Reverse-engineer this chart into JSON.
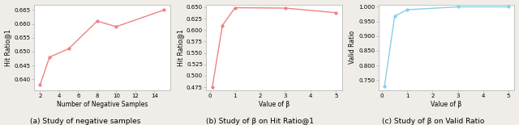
{
  "plot1": {
    "x": [
      2,
      3,
      5,
      8,
      10,
      15
    ],
    "y": [
      0.638,
      0.648,
      0.651,
      0.661,
      0.659,
      0.665
    ],
    "xlabel": "Number of Negative Samples",
    "ylabel": "Hit Ratio@1",
    "color": "#f08080",
    "marker": "o",
    "ylim": [
      0.636,
      0.667
    ],
    "yticks": [
      0.64,
      0.645,
      0.65,
      0.655,
      0.66,
      0.665
    ],
    "xticks": [
      2,
      4,
      6,
      8,
      10,
      12,
      14
    ],
    "caption": "(a) Study of negative samples"
  },
  "plot2": {
    "x": [
      0.1,
      0.5,
      1,
      3,
      5
    ],
    "y": [
      0.475,
      0.61,
      0.649,
      0.648,
      0.638
    ],
    "xlabel": "Value of β",
    "ylabel": "Hit Ratio@1",
    "color": "#f08080",
    "marker": "o",
    "ylim": [
      0.468,
      0.656
    ],
    "yticks": [
      0.475,
      0.5,
      0.525,
      0.55,
      0.575,
      0.6,
      0.625,
      0.65
    ],
    "xticks": [
      0,
      1,
      2,
      3,
      4,
      5
    ],
    "caption": "(b) Study of β on Hit Ratio@1"
  },
  "plot3": {
    "x": [
      0.1,
      0.5,
      1,
      3,
      5
    ],
    "y": [
      0.73,
      0.968,
      0.99,
      1.0,
      1.0
    ],
    "xlabel": "Value of β",
    "ylabel": "Valid Ratio",
    "color": "#87ceeb",
    "marker": "o",
    "ylim": [
      0.715,
      1.008
    ],
    "yticks": [
      0.75,
      0.8,
      0.85,
      0.9,
      0.95,
      1.0
    ],
    "xticks": [
      0,
      1,
      2,
      3,
      4,
      5
    ],
    "caption": "(c) Study of β on Valid Ratio"
  },
  "background_color": "#ffffff",
  "fig_background": "#f0ede8",
  "caption_fontsize": 6.5,
  "axis_label_fontsize": 5.5,
  "tick_fontsize": 5.0
}
